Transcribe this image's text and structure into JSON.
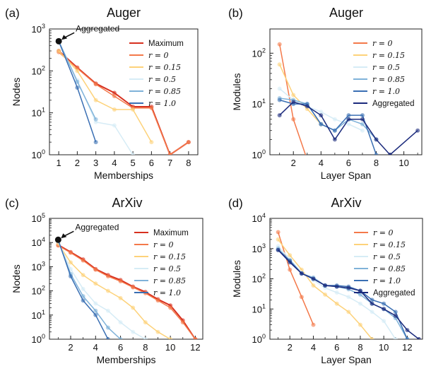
{
  "colors": {
    "maximum": "#d7301f",
    "r0": "#f4794a",
    "r015": "#fdd27a",
    "r05": "#d6ecf6",
    "r085": "#7fb2d9",
    "r10": "#3a6fb3",
    "aggregated": "#1b2a7c",
    "aggregated_point": "#111111"
  },
  "chart_data": [
    {
      "type": "line",
      "panel": "(a)",
      "title": "Auger",
      "xlabel": "Memberships",
      "ylabel": "Nodes",
      "yscale": "log",
      "xlim": [
        0.5,
        8.5
      ],
      "ylim": [
        1,
        1000
      ],
      "xticks": [
        "1",
        "2",
        "3",
        "4",
        "5",
        "6",
        "7",
        "8"
      ],
      "yticks": [
        "10^0",
        "10^1",
        "10^2",
        "10^3"
      ],
      "legend": {
        "placement": "top-right",
        "entries": [
          "Maximum",
          "r = 0",
          "r = 0.15",
          "r = 0.5",
          "r = 0.85",
          "r = 1.0"
        ]
      },
      "annotation": {
        "text": "Aggregated",
        "point": [
          1,
          510
        ]
      },
      "series": [
        {
          "name": "Maximum",
          "color_key": "maximum",
          "x": [
            1,
            2,
            3,
            4,
            5,
            6,
            7,
            8
          ],
          "y": [
            300,
            120,
            50,
            30,
            14,
            14,
            1,
            2
          ]
        },
        {
          "name": "r = 0",
          "color_key": "r0",
          "x": [
            1,
            2,
            3,
            4,
            5,
            6,
            7,
            8
          ],
          "y": [
            280,
            115,
            48,
            25,
            13,
            13,
            1,
            2
          ]
        },
        {
          "name": "r = 0.15",
          "color_key": "r015",
          "x": [
            1,
            2,
            3,
            4,
            5,
            6
          ],
          "y": [
            300,
            100,
            20,
            12,
            12,
            2
          ]
        },
        {
          "name": "r = 0.5",
          "color_key": "r05",
          "x": [
            1,
            2,
            3,
            4,
            5
          ],
          "y": [
            500,
            60,
            6,
            5,
            1
          ]
        },
        {
          "name": "r = 0.85",
          "color_key": "r085",
          "x": [
            1,
            2,
            3
          ],
          "y": [
            520,
            55,
            7
          ]
        },
        {
          "name": "r = 1.0",
          "color_key": "r10",
          "x": [
            1,
            2,
            3
          ],
          "y": [
            510,
            40,
            2
          ]
        }
      ]
    },
    {
      "type": "line",
      "panel": "(b)",
      "title": "Auger",
      "xlabel": "Layer Span",
      "ylabel": "Modules",
      "yscale": "log",
      "xlim": [
        0.3,
        11.3
      ],
      "ylim": [
        1,
        300
      ],
      "xticks": [
        "2",
        "4",
        "6",
        "8",
        "10"
      ],
      "yticks": [
        "10^0",
        "10^1",
        "10^2"
      ],
      "legend": {
        "placement": "top-right",
        "entries": [
          "r = 0",
          "r = 0.15",
          "r = 0.5",
          "r = 0.85",
          "r = 1.0",
          "Aggregated"
        ]
      },
      "series": [
        {
          "name": "r = 0",
          "color_key": "r0",
          "x": [
            1,
            2,
            3
          ],
          "y": [
            150,
            5,
            0.8
          ]
        },
        {
          "name": "r = 0.15",
          "color_key": "r015",
          "x": [
            1,
            2,
            3,
            4
          ],
          "y": [
            60,
            15,
            8,
            4
          ]
        },
        {
          "name": "r = 0.5",
          "color_key": "r05",
          "x": [
            1,
            2,
            3,
            4,
            5,
            6,
            7
          ],
          "y": [
            20,
            12,
            9,
            7,
            5,
            4,
            3
          ]
        },
        {
          "name": "r = 0.85",
          "color_key": "r085",
          "x": [
            1,
            2,
            3,
            4,
            5,
            6,
            7,
            8
          ],
          "y": [
            13,
            12,
            10,
            4,
            3,
            5,
            4,
            2
          ]
        },
        {
          "name": "r = 1.0",
          "color_key": "r10",
          "x": [
            1,
            2,
            3,
            4,
            5,
            6,
            7,
            8
          ],
          "y": [
            12,
            10,
            10,
            4,
            3,
            6,
            6,
            1
          ]
        },
        {
          "name": "Aggregated",
          "color_key": "aggregated",
          "x": [
            1,
            2,
            3,
            4,
            5,
            6,
            7,
            8,
            9,
            11
          ],
          "y": [
            6,
            11,
            9,
            6,
            2,
            5,
            5,
            2,
            1,
            3
          ]
        }
      ]
    },
    {
      "type": "line",
      "panel": "(c)",
      "title": "ArXiv",
      "xlabel": "Memberships",
      "ylabel": "Nodes",
      "yscale": "log",
      "xlim": [
        0.3,
        12.6
      ],
      "ylim": [
        1,
        100000
      ],
      "xticks": [
        "2",
        "4",
        "6",
        "8",
        "10",
        "12"
      ],
      "yticks": [
        "10^0",
        "10^1",
        "10^2",
        "10^3",
        "10^4",
        "10^5"
      ],
      "legend": {
        "placement": "top-right",
        "entries": [
          "Maximum",
          "r = 0",
          "r = 0.15",
          "r = 0.5",
          "r = 0.85",
          "r = 1.0"
        ]
      },
      "annotation": {
        "text": "Aggregated",
        "point": [
          1,
          13000
        ]
      },
      "series": [
        {
          "name": "Maximum",
          "color_key": "maximum",
          "x": [
            1,
            2,
            3,
            4,
            5,
            6,
            7,
            8,
            9,
            10,
            11,
            12
          ],
          "y": [
            8000,
            4000,
            2000,
            800,
            450,
            280,
            150,
            90,
            45,
            25,
            6,
            1
          ]
        },
        {
          "name": "r = 0",
          "color_key": "r0",
          "x": [
            1,
            2,
            3,
            4,
            5,
            6,
            7,
            8,
            9,
            10,
            11,
            12
          ],
          "y": [
            7500,
            3800,
            1800,
            750,
            400,
            250,
            140,
            80,
            40,
            20,
            5,
            1
          ]
        },
        {
          "name": "r = 0.15",
          "color_key": "r015",
          "x": [
            1,
            2,
            3,
            4,
            5,
            6,
            7,
            8,
            9,
            10
          ],
          "y": [
            9000,
            1500,
            450,
            200,
            100,
            50,
            20,
            5,
            2,
            1
          ]
        },
        {
          "name": "r = 0.5",
          "color_key": "r05",
          "x": [
            1,
            2,
            3,
            4,
            5,
            6,
            7,
            8
          ],
          "y": [
            11000,
            800,
            120,
            30,
            15,
            5,
            2,
            1
          ]
        },
        {
          "name": "r = 0.85",
          "color_key": "r085",
          "x": [
            1,
            2,
            3,
            4,
            5,
            6
          ],
          "y": [
            12000,
            500,
            60,
            15,
            3,
            1
          ]
        },
        {
          "name": "r = 1.0",
          "color_key": "r10",
          "x": [
            1,
            2,
            3,
            4,
            5
          ],
          "y": [
            13000,
            400,
            40,
            10,
            1
          ]
        }
      ]
    },
    {
      "type": "line",
      "panel": "(d)",
      "title": "ArXiv",
      "xlabel": "Layer Span",
      "ylabel": "Modules",
      "yscale": "log",
      "xlim": [
        0.3,
        13.3
      ],
      "ylim": [
        1,
        10000
      ],
      "xticks": [
        "2",
        "4",
        "6",
        "8",
        "10",
        "12"
      ],
      "yticks": [
        "10^0",
        "10^1",
        "10^2",
        "10^3",
        "10^4"
      ],
      "legend": {
        "placement": "top-right",
        "entries": [
          "r = 0",
          "r = 0.15",
          "r = 0.5",
          "r = 0.85",
          "r = 1.0",
          "Aggregated"
        ]
      },
      "series": [
        {
          "name": "r = 0",
          "color_key": "r0",
          "x": [
            1,
            2,
            3,
            4
          ],
          "y": [
            3500,
            200,
            25,
            3
          ]
        },
        {
          "name": "r = 0.15",
          "color_key": "r015",
          "x": [
            1,
            2,
            3,
            4,
            5,
            6,
            7,
            8,
            9
          ],
          "y": [
            2000,
            600,
            200,
            60,
            30,
            15,
            8,
            3,
            1
          ]
        },
        {
          "name": "r = 0.5",
          "color_key": "r05",
          "x": [
            1,
            2,
            3,
            4,
            5,
            6,
            7,
            8,
            9,
            10,
            11
          ],
          "y": [
            1200,
            450,
            160,
            90,
            50,
            35,
            25,
            15,
            8,
            4,
            1
          ]
        },
        {
          "name": "r = 0.85",
          "color_key": "r085",
          "x": [
            1,
            2,
            3,
            4,
            5,
            6,
            7,
            8,
            9,
            10,
            11,
            12
          ],
          "y": [
            1000,
            400,
            150,
            110,
            60,
            55,
            45,
            30,
            15,
            10,
            5,
            1
          ]
        },
        {
          "name": "r = 1.0",
          "color_key": "r10",
          "x": [
            1,
            2,
            3,
            4,
            5,
            6,
            7,
            8,
            9,
            10,
            11,
            12
          ],
          "y": [
            900,
            400,
            150,
            100,
            60,
            60,
            55,
            40,
            20,
            15,
            8,
            1
          ]
        },
        {
          "name": "Aggregated",
          "color_key": "aggregated",
          "x": [
            1,
            2,
            3,
            4,
            5,
            6,
            7,
            8,
            9,
            10,
            11,
            12,
            13
          ],
          "y": [
            900,
            350,
            150,
            100,
            60,
            55,
            50,
            40,
            15,
            10,
            6,
            2,
            1
          ]
        }
      ]
    }
  ]
}
